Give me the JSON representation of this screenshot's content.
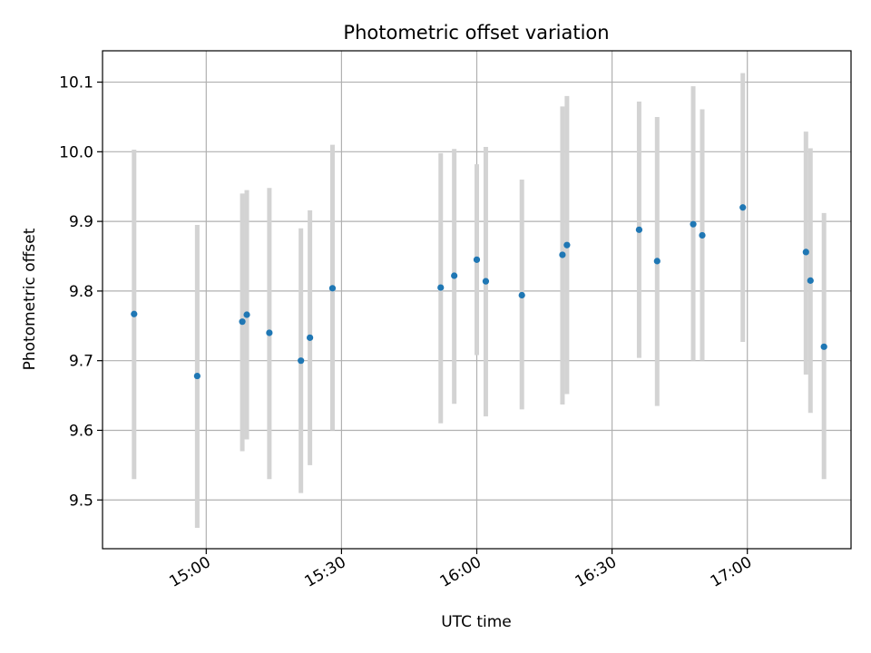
{
  "chart_data": {
    "type": "scatter",
    "title": "Photometric offset variation",
    "xlabel": "UTC time",
    "ylabel": "Photometric offset",
    "x_ticks": [
      "14:30",
      "15:00",
      "15:30",
      "16:00",
      "16:30",
      "17:00"
    ],
    "x_tick_labels": [
      "",
      "15:00",
      "15:30",
      "16:00",
      "16:30",
      "17:00"
    ],
    "xlim": [
      "14:37",
      "17:23"
    ],
    "y_ticks": [
      9.5,
      9.6,
      9.7,
      9.8,
      9.9,
      10.0,
      10.1
    ],
    "y_tick_labels": [
      "9.5",
      "9.6",
      "9.7",
      "9.8",
      "9.9",
      "10.0",
      "10.1"
    ],
    "ylim": [
      9.43,
      10.145
    ],
    "grid": true,
    "colors": {
      "point": "#1f77b4",
      "errorbar": "#d3d3d3",
      "grid": "#b0b0b0"
    },
    "points": [
      {
        "x": "14:44",
        "y": 9.767,
        "ylo": 9.53,
        "yhi": 10.003
      },
      {
        "x": "14:58",
        "y": 9.678,
        "ylo": 9.46,
        "yhi": 9.895
      },
      {
        "x": "15:08",
        "y": 9.756,
        "ylo": 9.57,
        "yhi": 9.94
      },
      {
        "x": "15:09",
        "y": 9.766,
        "ylo": 9.587,
        "yhi": 9.945
      },
      {
        "x": "15:14",
        "y": 9.74,
        "ylo": 9.53,
        "yhi": 9.948
      },
      {
        "x": "15:21",
        "y": 9.7,
        "ylo": 9.51,
        "yhi": 9.89
      },
      {
        "x": "15:23",
        "y": 9.733,
        "ylo": 9.55,
        "yhi": 9.916
      },
      {
        "x": "15:28",
        "y": 9.804,
        "ylo": 9.6,
        "yhi": 10.01
      },
      {
        "x": "15:52",
        "y": 9.805,
        "ylo": 9.61,
        "yhi": 9.998
      },
      {
        "x": "15:55",
        "y": 9.822,
        "ylo": 9.638,
        "yhi": 10.004
      },
      {
        "x": "16:00",
        "y": 9.845,
        "ylo": 9.708,
        "yhi": 9.982
      },
      {
        "x": "16:02",
        "y": 9.814,
        "ylo": 9.62,
        "yhi": 10.007
      },
      {
        "x": "16:10",
        "y": 9.794,
        "ylo": 9.63,
        "yhi": 9.96
      },
      {
        "x": "16:19",
        "y": 9.852,
        "ylo": 9.637,
        "yhi": 10.065
      },
      {
        "x": "16:20",
        "y": 9.866,
        "ylo": 9.652,
        "yhi": 10.08
      },
      {
        "x": "16:36",
        "y": 9.888,
        "ylo": 9.704,
        "yhi": 10.072
      },
      {
        "x": "16:40",
        "y": 9.843,
        "ylo": 9.635,
        "yhi": 10.05
      },
      {
        "x": "16:48",
        "y": 9.896,
        "ylo": 9.7,
        "yhi": 10.094
      },
      {
        "x": "16:50",
        "y": 9.88,
        "ylo": 9.7,
        "yhi": 10.061
      },
      {
        "x": "16:59",
        "y": 9.92,
        "ylo": 9.727,
        "yhi": 10.113
      },
      {
        "x": "17:13",
        "y": 9.856,
        "ylo": 9.68,
        "yhi": 10.029
      },
      {
        "x": "17:14",
        "y": 9.815,
        "ylo": 9.625,
        "yhi": 10.005
      },
      {
        "x": "17:17",
        "y": 9.72,
        "ylo": 9.53,
        "yhi": 9.912
      }
    ]
  }
}
